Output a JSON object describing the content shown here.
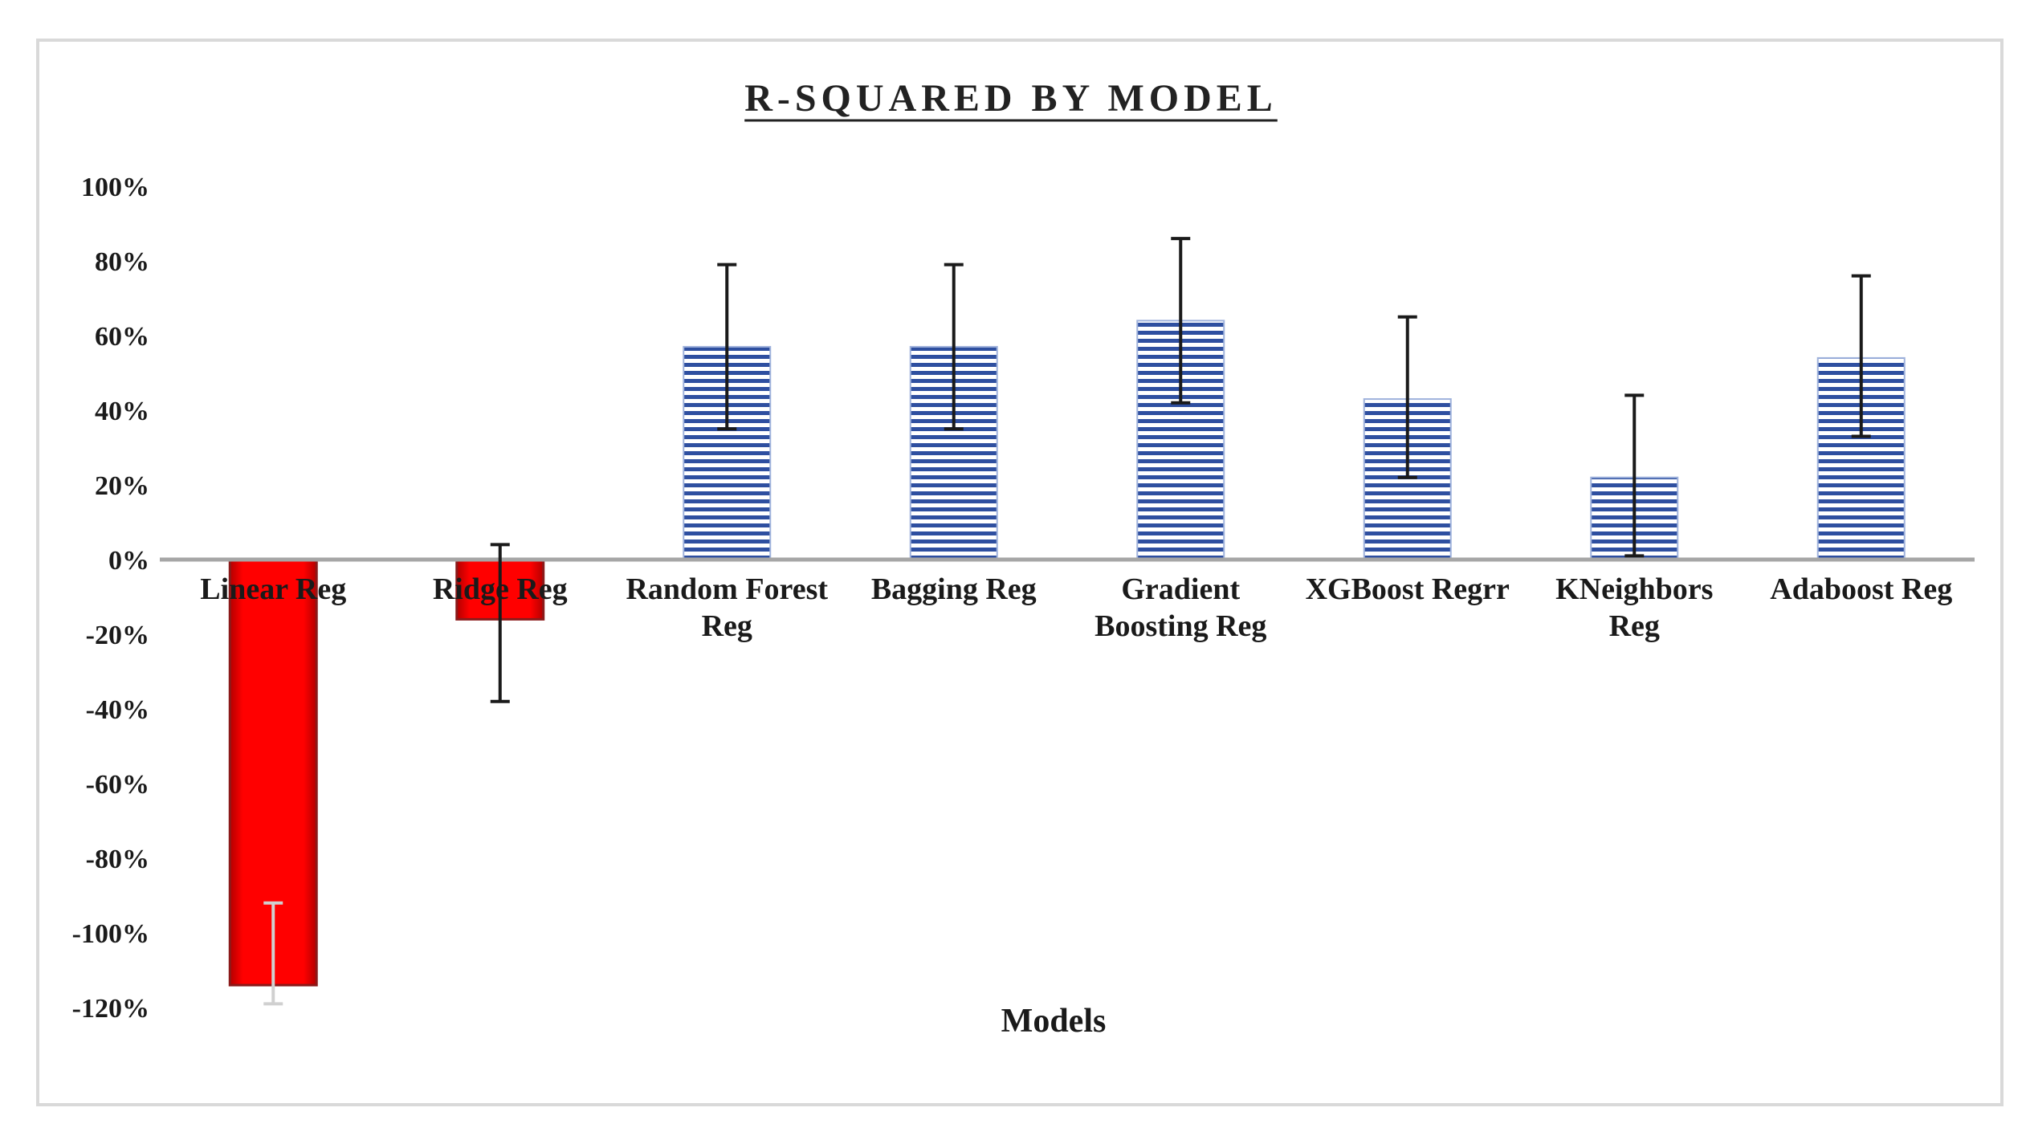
{
  "chart_data": {
    "type": "bar",
    "title": "R-SQUARED BY MODEL",
    "xlabel": "Models",
    "ylabel": "",
    "ylim": [
      -120,
      100
    ],
    "yticks": [
      "100%",
      "80%",
      "60%",
      "40%",
      "20%",
      "0%",
      "-20%",
      "-40%",
      "-60%",
      "-80%",
      "-100%",
      "-120%"
    ],
    "ytick_values": [
      100,
      80,
      60,
      40,
      20,
      0,
      -20,
      -40,
      -60,
      -80,
      -100,
      -120
    ],
    "grid": false,
    "legend": "none",
    "categories": [
      [
        "Linear Reg"
      ],
      [
        "Ridge Reg"
      ],
      [
        "Random Forest",
        "Reg"
      ],
      [
        "Bagging Reg"
      ],
      [
        "Gradient",
        "Boosting Reg"
      ],
      [
        "XGBoost Regrr"
      ],
      [
        "KNeighbors",
        "Reg"
      ],
      [
        "Adaboost Reg"
      ]
    ],
    "values": [
      -114,
      -16,
      57,
      57,
      64,
      43,
      22,
      54
    ],
    "error_bars": [
      {
        "low": -119,
        "high": -92
      },
      {
        "low": -38,
        "high": 4
      },
      {
        "low": 35,
        "high": 79
      },
      {
        "low": 35,
        "high": 79
      },
      {
        "low": 42,
        "high": 86
      },
      {
        "low": 22,
        "high": 65
      },
      {
        "low": 1,
        "high": 44
      },
      {
        "low": 33,
        "high": 76
      }
    ],
    "colors": {
      "negative_bar": "#ff0000",
      "negative_edge": "#8b1a1a",
      "positive_bar": "#2e4fa0",
      "positive_stripe_bg": "#ffffff",
      "zero_line": "#a6a6a6",
      "error_bar": "#1a1a1a"
    }
  }
}
